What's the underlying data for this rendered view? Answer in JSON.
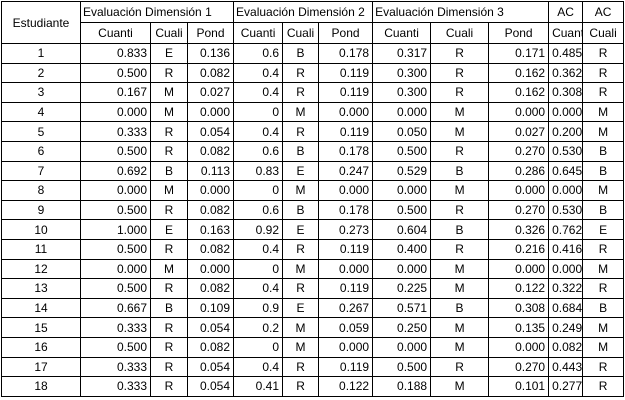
{
  "table": {
    "header": {
      "row1": [
        "Estudiante",
        "Evaluación Dimensión 1",
        "Evaluación Dimensión 2",
        "Evaluación Dimensión 3",
        "AC",
        "AC"
      ],
      "row2": [
        "Cuanti",
        "Cuali",
        "Pond",
        "Cuanti",
        "Cuali",
        "Pond",
        "Cuanti",
        "Cuali",
        "Pond",
        "Cuanti",
        "Cuali"
      ]
    },
    "rows": [
      [
        "1",
        "0.833",
        "E",
        "0.136",
        "0.6",
        "B",
        "0.178",
        "0.317",
        "R",
        "0.171",
        "0.485",
        "R"
      ],
      [
        "2",
        "0.500",
        "R",
        "0.082",
        "0.4",
        "R",
        "0.119",
        "0.300",
        "R",
        "0.162",
        "0.362",
        "R"
      ],
      [
        "3",
        "0.167",
        "M",
        "0.027",
        "0.4",
        "R",
        "0.119",
        "0.300",
        "R",
        "0.162",
        "0.308",
        "R"
      ],
      [
        "4",
        "0.000",
        "M",
        "0.000",
        "0",
        "M",
        "0.000",
        "0.000",
        "M",
        "0.000",
        "0.000",
        "M"
      ],
      [
        "5",
        "0.333",
        "R",
        "0.054",
        "0.4",
        "R",
        "0.119",
        "0.050",
        "M",
        "0.027",
        "0.200",
        "M"
      ],
      [
        "6",
        "0.500",
        "R",
        "0.082",
        "0.6",
        "B",
        "0.178",
        "0.500",
        "R",
        "0.270",
        "0.530",
        "B"
      ],
      [
        "7",
        "0.692",
        "B",
        "0.113",
        "0.83",
        "E",
        "0.247",
        "0.529",
        "B",
        "0.286",
        "0.645",
        "B"
      ],
      [
        "8",
        "0.000",
        "M",
        "0.000",
        "0",
        "M",
        "0.000",
        "0.000",
        "M",
        "0.000",
        "0.000",
        "M"
      ],
      [
        "9",
        "0.500",
        "R",
        "0.082",
        "0.6",
        "B",
        "0.178",
        "0.500",
        "R",
        "0.270",
        "0.530",
        "B"
      ],
      [
        "10",
        "1.000",
        "E",
        "0.163",
        "0.92",
        "E",
        "0.273",
        "0.604",
        "B",
        "0.326",
        "0.762",
        "E"
      ],
      [
        "11",
        "0.500",
        "R",
        "0.082",
        "0.4",
        "R",
        "0.119",
        "0.400",
        "R",
        "0.216",
        "0.416",
        "R"
      ],
      [
        "12",
        "0.000",
        "M",
        "0.000",
        "0",
        "M",
        "0.000",
        "0.000",
        "M",
        "0.000",
        "0.000",
        "M"
      ],
      [
        "13",
        "0.500",
        "R",
        "0.082",
        "0.4",
        "R",
        "0.119",
        "0.225",
        "M",
        "0.122",
        "0.322",
        "R"
      ],
      [
        "14",
        "0.667",
        "B",
        "0.109",
        "0.9",
        "E",
        "0.267",
        "0.571",
        "B",
        "0.308",
        "0.684",
        "B"
      ],
      [
        "15",
        "0.333",
        "R",
        "0.054",
        "0.2",
        "M",
        "0.059",
        "0.250",
        "M",
        "0.135",
        "0.249",
        "M"
      ],
      [
        "16",
        "0.500",
        "R",
        "0.082",
        "0",
        "M",
        "0.000",
        "0.000",
        "M",
        "0.000",
        "0.082",
        "M"
      ],
      [
        "17",
        "0.333",
        "R",
        "0.054",
        "0.4",
        "R",
        "0.119",
        "0.500",
        "R",
        "0.270",
        "0.443",
        "R"
      ],
      [
        "18",
        "0.333",
        "R",
        "0.054",
        "0.41",
        "R",
        "0.122",
        "0.188",
        "M",
        "0.101",
        "0.277",
        "R"
      ]
    ]
  }
}
